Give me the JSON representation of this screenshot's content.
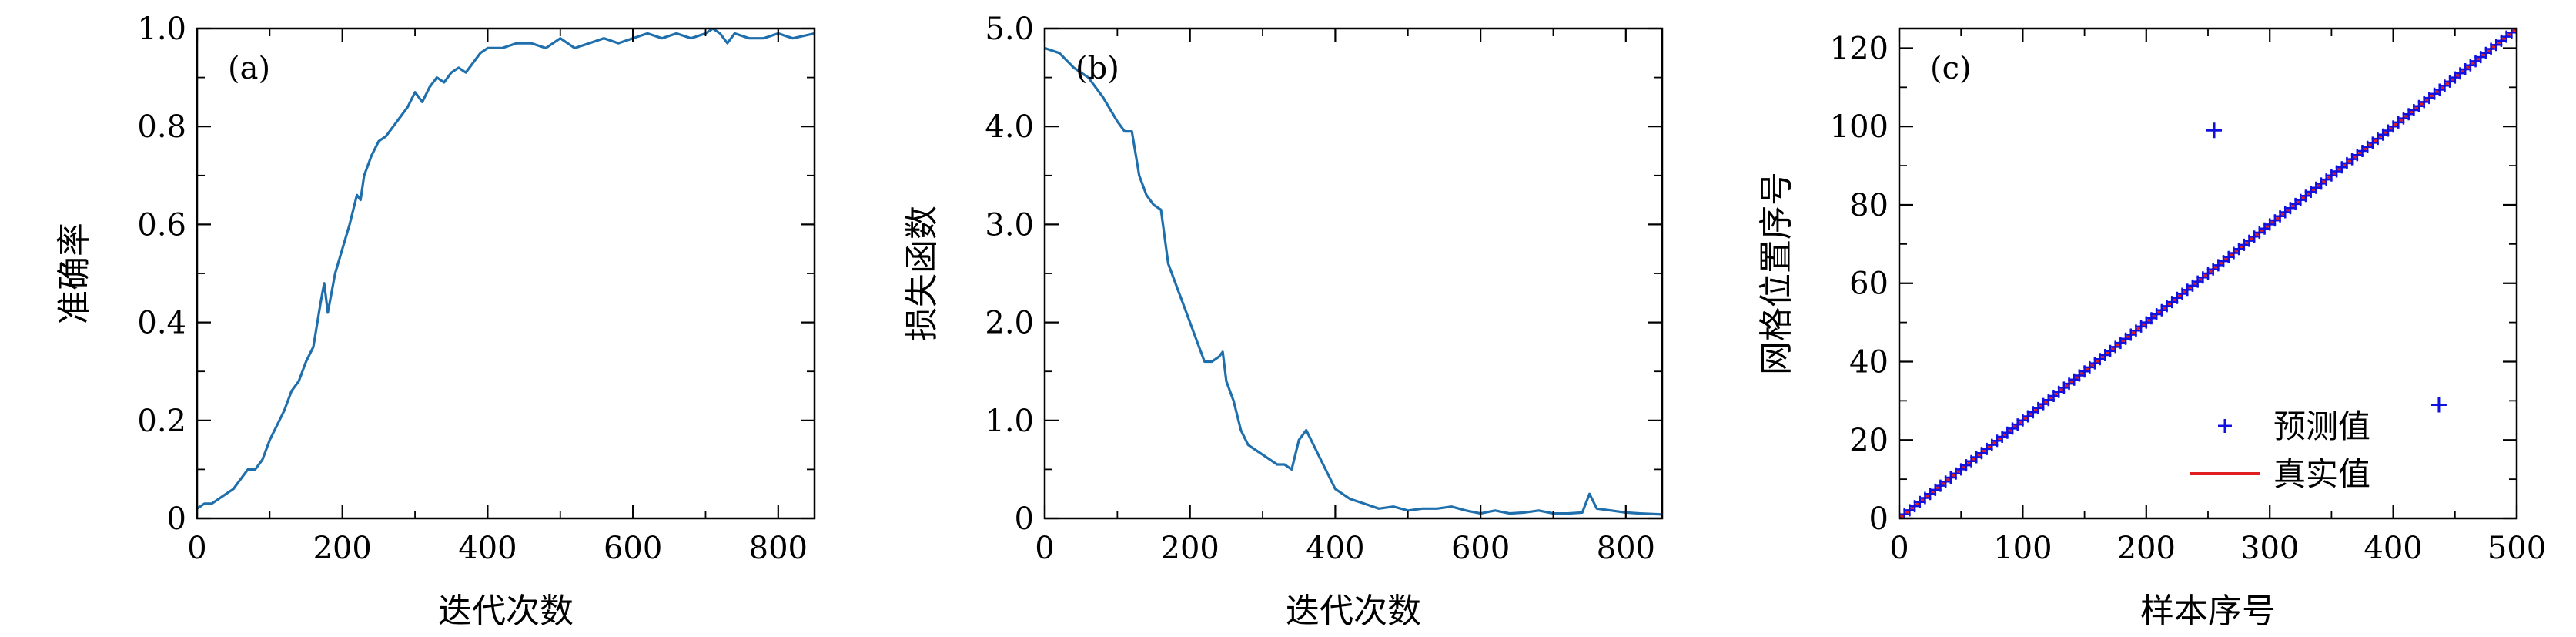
{
  "chart_data": [
    {
      "type": "line",
      "panel_label": "(a)",
      "xlabel": "迭代次数",
      "ylabel": "准确率",
      "xlim": [
        0,
        850
      ],
      "ylim": [
        0,
        1.0
      ],
      "xticks": [
        0,
        200,
        400,
        600,
        800
      ],
      "xtick_labels": [
        "0",
        "200",
        "400",
        "600",
        "800"
      ],
      "yticks": [
        0,
        0.2,
        0.4,
        0.6,
        0.8,
        1.0
      ],
      "ytick_labels": [
        "0",
        "0.2",
        "0.4",
        "0.6",
        "0.8",
        "1.0"
      ],
      "color": "#1f6fad",
      "series": [
        {
          "x": [
            0,
            10,
            20,
            30,
            40,
            50,
            60,
            70,
            80,
            90,
            100,
            110,
            120,
            130,
            140,
            150,
            160,
            170,
            175,
            180,
            190,
            200,
            210,
            220,
            225,
            230,
            240,
            250,
            260,
            270,
            280,
            290,
            300,
            310,
            320,
            330,
            340,
            350,
            360,
            370,
            380,
            390,
            400,
            420,
            440,
            460,
            480,
            500,
            520,
            540,
            560,
            580,
            600,
            620,
            640,
            660,
            680,
            700,
            710,
            720,
            730,
            740,
            760,
            780,
            800,
            820,
            850
          ],
          "y": [
            0.02,
            0.03,
            0.03,
            0.04,
            0.05,
            0.06,
            0.08,
            0.1,
            0.1,
            0.12,
            0.16,
            0.19,
            0.22,
            0.26,
            0.28,
            0.32,
            0.35,
            0.44,
            0.48,
            0.42,
            0.5,
            0.55,
            0.6,
            0.66,
            0.65,
            0.7,
            0.74,
            0.77,
            0.78,
            0.8,
            0.82,
            0.84,
            0.87,
            0.85,
            0.88,
            0.9,
            0.89,
            0.91,
            0.92,
            0.91,
            0.93,
            0.95,
            0.96,
            0.96,
            0.97,
            0.97,
            0.96,
            0.98,
            0.96,
            0.97,
            0.98,
            0.97,
            0.98,
            0.99,
            0.98,
            0.99,
            0.98,
            0.99,
            1.0,
            0.99,
            0.97,
            0.99,
            0.98,
            0.98,
            0.99,
            0.98,
            0.99
          ]
        }
      ]
    },
    {
      "type": "line",
      "panel_label": "(b)",
      "xlabel": "迭代次数",
      "ylabel": "损失函数",
      "xlim": [
        0,
        850
      ],
      "ylim": [
        0,
        5.0
      ],
      "xticks": [
        0,
        200,
        400,
        600,
        800
      ],
      "xtick_labels": [
        "0",
        "200",
        "400",
        "600",
        "800"
      ],
      "yticks": [
        0,
        1.0,
        2.0,
        3.0,
        4.0,
        5.0
      ],
      "ytick_labels": [
        "0",
        "1.0",
        "2.0",
        "3.0",
        "4.0",
        "5.0"
      ],
      "color": "#1f6fad",
      "series": [
        {
          "x": [
            0,
            20,
            40,
            60,
            80,
            100,
            110,
            120,
            130,
            140,
            150,
            160,
            170,
            180,
            190,
            200,
            210,
            220,
            230,
            240,
            245,
            250,
            260,
            270,
            280,
            290,
            300,
            310,
            320,
            330,
            340,
            350,
            360,
            370,
            380,
            390,
            400,
            420,
            440,
            460,
            480,
            500,
            520,
            540,
            560,
            580,
            600,
            620,
            640,
            660,
            680,
            700,
            720,
            740,
            750,
            760,
            780,
            800,
            820,
            850
          ],
          "y": [
            4.8,
            4.75,
            4.6,
            4.5,
            4.3,
            4.05,
            3.95,
            3.95,
            3.5,
            3.3,
            3.2,
            3.15,
            2.6,
            2.4,
            2.2,
            2.0,
            1.8,
            1.6,
            1.6,
            1.65,
            1.7,
            1.4,
            1.2,
            0.9,
            0.75,
            0.7,
            0.65,
            0.6,
            0.55,
            0.55,
            0.5,
            0.8,
            0.9,
            0.75,
            0.6,
            0.45,
            0.3,
            0.2,
            0.15,
            0.1,
            0.12,
            0.08,
            0.1,
            0.1,
            0.12,
            0.08,
            0.05,
            0.08,
            0.05,
            0.06,
            0.08,
            0.05,
            0.05,
            0.06,
            0.25,
            0.1,
            0.08,
            0.06,
            0.05,
            0.04
          ]
        }
      ]
    },
    {
      "type": "scatter",
      "panel_label": "(c)",
      "xlabel": "样本序号",
      "ylabel": "网格位置序号",
      "xlim": [
        0,
        500
      ],
      "ylim": [
        0,
        125
      ],
      "xticks": [
        0,
        100,
        200,
        300,
        400,
        500
      ],
      "xtick_labels": [
        "0",
        "100",
        "200",
        "300",
        "400",
        "500"
      ],
      "yticks": [
        0,
        20,
        40,
        60,
        80,
        100,
        120
      ],
      "ytick_labels": [
        "0",
        "20",
        "40",
        "60",
        "80",
        "100",
        "120"
      ],
      "legend": {
        "position": "lower-right",
        "entries": [
          "预测值",
          "真实值"
        ]
      },
      "series": [
        {
          "name": "预测值",
          "marker": "+",
          "color": "#1010e0",
          "line_from": [
            0,
            0
          ],
          "line_to": [
            500,
            125
          ],
          "x": [
            255,
            437
          ],
          "y": [
            99,
            29
          ]
        },
        {
          "name": "真实值",
          "style": "line",
          "color": "#e02020",
          "x": [
            0,
            500
          ],
          "y": [
            0,
            125
          ]
        }
      ]
    }
  ]
}
